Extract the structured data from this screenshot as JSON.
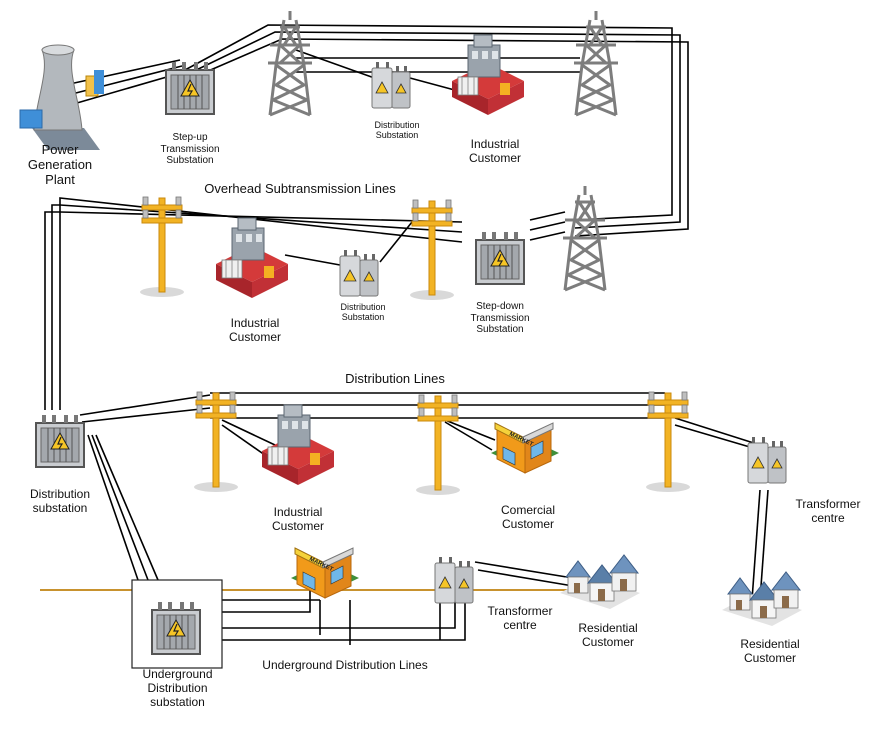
{
  "colors": {
    "line": "#000000",
    "ground_line": "#c8922e",
    "pole": "#f2b324",
    "tower": "#8a8a8a",
    "factory_red": "#c8262c",
    "factory_gray": "#9aa3ac",
    "market_orange": "#f19a1a",
    "house_blue": "#5a7fa8"
  },
  "labels": {
    "power_plant": "Power\nGeneration\nPlant",
    "stepup": "Step-up\nTransmission\nSubstation",
    "dist_sub_top": "Distribution\nSubstation",
    "industrial_top": "Industrial\nCustomer",
    "overhead_sub": "Overhead Subtransmission Lines",
    "industrial_mid": "Industrial\nCustomer",
    "dist_sub_mid": "Distribution\nSubstation",
    "stepdown": "Step-down\nTransmission\nSubstation",
    "distribution_lines": "Distribution Lines",
    "distribution_substation": "Distribution\nsubstation",
    "industrial_low": "Industrial\nCustomer",
    "commercial": "Comercial\nCustomer",
    "transformer_right": "Transformer\ncentre",
    "residential_right": "Residential\nCustomer",
    "transformer_mid": "Transformer\ncentre",
    "residential_mid": "Residential\nCustomer",
    "underground_lines": "Underground Distribution Lines",
    "underground_sub": "Underground\nDistribution\nsubstation"
  },
  "icons": {
    "plant": "power-plant-icon",
    "transformer": "transformer-icon",
    "tower": "transmission-tower-icon",
    "pole": "utility-pole-icon",
    "factory": "factory-icon",
    "market": "market-icon",
    "houses": "houses-icon"
  },
  "sign_text": "MARKET"
}
